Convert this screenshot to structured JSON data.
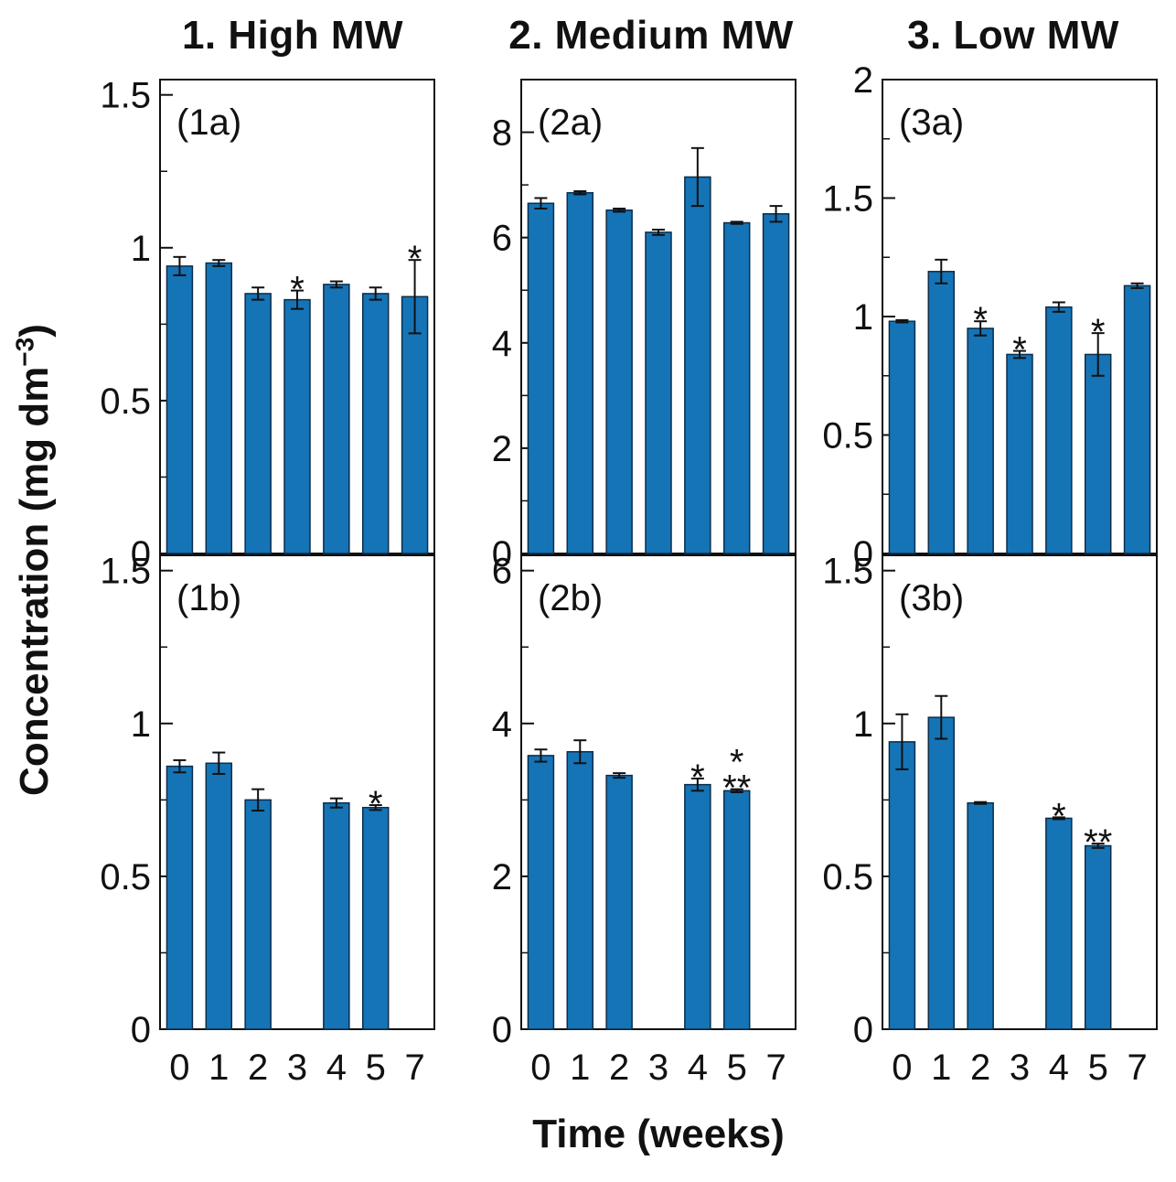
{
  "figure": {
    "column_titles": [
      "1. High MW",
      "2. Medium MW",
      "3. Low MW"
    ],
    "xlabel": "Time (weeks)",
    "ylabel_main": "Concentration (mg dm",
    "ylabel_exp": "−3",
    "ylabel_close": ")",
    "bar_color": "#1574b6"
  },
  "chart_data": [
    {
      "type": "bar",
      "label": "(1a)",
      "title": "1. High MW",
      "categories": [
        "0",
        "1",
        "2",
        "3",
        "4",
        "5",
        "7"
      ],
      "values": [
        0.94,
        0.95,
        0.85,
        0.83,
        0.88,
        0.85,
        0.84
      ],
      "errors": [
        0.03,
        0.01,
        0.02,
        0.03,
        0.01,
        0.02,
        0.12
      ],
      "marks": [
        "",
        "",
        "",
        "*",
        "",
        "",
        "*"
      ],
      "ylim": [
        0,
        1.55
      ],
      "yticks": [
        0,
        0.5,
        1,
        1.5
      ],
      "yticklabels": [
        "0",
        "0.5",
        "1",
        "1.5"
      ],
      "xlabel": "Time (weeks)",
      "ylabel": "Concentration (mg dm−3)"
    },
    {
      "type": "bar",
      "label": "(2a)",
      "title": "2. Medium MW",
      "categories": [
        "0",
        "1",
        "2",
        "3",
        "4",
        "5",
        "7"
      ],
      "values": [
        6.65,
        6.85,
        6.52,
        6.1,
        7.15,
        6.28,
        6.45
      ],
      "errors": [
        0.1,
        0.03,
        0.03,
        0.05,
        0.55,
        0.02,
        0.15
      ],
      "marks": [
        "",
        "",
        "",
        "",
        "",
        "",
        ""
      ],
      "ylim": [
        0,
        9.0
      ],
      "yticks": [
        0,
        2,
        4,
        6,
        8
      ],
      "yticklabels": [
        "0",
        "2",
        "4",
        "6",
        "8"
      ],
      "xlabel": "Time (weeks)",
      "ylabel": "Concentration (mg dm−3)"
    },
    {
      "type": "bar",
      "label": "(3a)",
      "title": "3. Low MW",
      "categories": [
        "0",
        "1",
        "2",
        "3",
        "4",
        "5",
        "7"
      ],
      "values": [
        0.98,
        1.19,
        0.95,
        0.84,
        1.04,
        0.84,
        1.13
      ],
      "errors": [
        0.005,
        0.05,
        0.03,
        0.015,
        0.02,
        0.09,
        0.01
      ],
      "marks": [
        "",
        "",
        "*",
        "*",
        "",
        "*",
        ""
      ],
      "ylim": [
        0,
        2.0
      ],
      "yticks": [
        0,
        0.5,
        1,
        1.5,
        2
      ],
      "yticklabels": [
        "0",
        "0.5",
        "1",
        "1.5",
        "2"
      ],
      "xlabel": "Time (weeks)",
      "ylabel": "Concentration (mg dm−3)"
    },
    {
      "type": "bar",
      "label": "(1b)",
      "title": "",
      "categories": [
        "0",
        "1",
        "2",
        "3",
        "4",
        "5",
        "7"
      ],
      "values": [
        0.86,
        0.87,
        0.75,
        null,
        0.74,
        0.725,
        null
      ],
      "errors": [
        0.02,
        0.035,
        0.035,
        null,
        0.015,
        0.008,
        null
      ],
      "marks": [
        "",
        "",
        "",
        "",
        "",
        "*",
        ""
      ],
      "ylim": [
        0,
        1.55
      ],
      "yticks": [
        0,
        0.5,
        1,
        1.5
      ],
      "yticklabels": [
        "0",
        "0.5",
        "1",
        "1.5"
      ],
      "xlabel": "Time (weeks)",
      "ylabel": "Concentration (mg dm−3)"
    },
    {
      "type": "bar",
      "label": "(2b)",
      "title": "",
      "categories": [
        "0",
        "1",
        "2",
        "3",
        "4",
        "5",
        "7"
      ],
      "values": [
        3.58,
        3.63,
        3.32,
        null,
        3.2,
        3.12,
        null
      ],
      "errors": [
        0.08,
        0.15,
        0.03,
        null,
        0.08,
        0.02,
        null
      ],
      "marks": [
        "",
        "",
        "",
        "",
        "*",
        "*\n**",
        ""
      ],
      "ylim": [
        0,
        6.2
      ],
      "yticks": [
        0,
        2,
        4,
        6
      ],
      "yticklabels": [
        "0",
        "2",
        "4",
        "6"
      ],
      "xlabel": "Time (weeks)",
      "ylabel": "Concentration (mg dm−3)"
    },
    {
      "type": "bar",
      "label": "(3b)",
      "title": "",
      "categories": [
        "0",
        "1",
        "2",
        "3",
        "4",
        "5",
        "7"
      ],
      "values": [
        0.94,
        1.02,
        0.74,
        null,
        0.69,
        0.6,
        null
      ],
      "errors": [
        0.09,
        0.07,
        0.003,
        null,
        0.003,
        0.007,
        null
      ],
      "marks": [
        "",
        "",
        "",
        "",
        "*",
        "**",
        ""
      ],
      "ylim": [
        0,
        1.55
      ],
      "yticks": [
        0,
        0.5,
        1,
        1.5
      ],
      "yticklabels": [
        "0",
        "0.5",
        "1",
        "1.5"
      ],
      "xlabel": "Time (weeks)",
      "ylabel": "Concentration (mg dm−3)"
    }
  ]
}
